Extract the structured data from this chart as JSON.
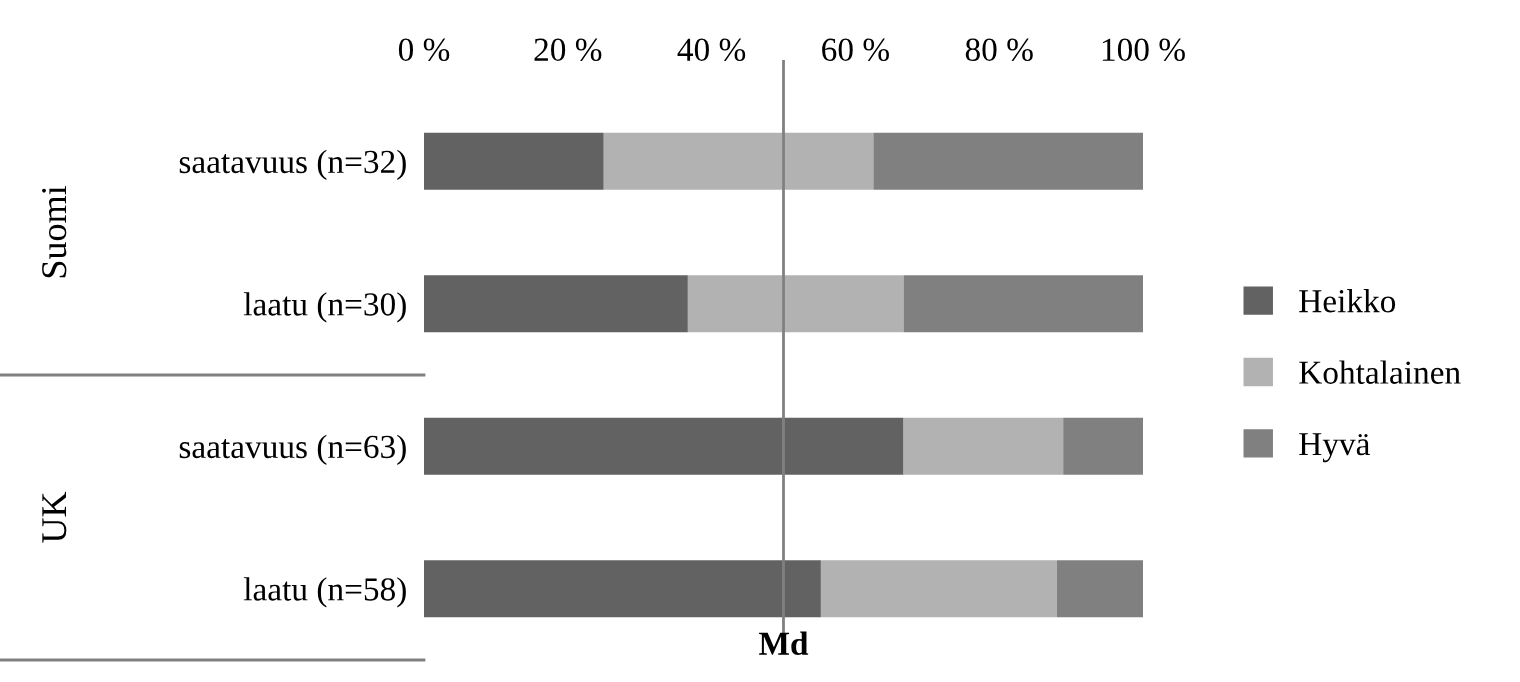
{
  "chart_data": {
    "type": "bar",
    "orientation": "horizontal",
    "stacked": true,
    "categories": [
      "saatavuus (n=32)",
      "laatu (n=30)",
      "saatavuus (n=63)",
      "laatu (n=58)"
    ],
    "series": [
      {
        "name": "Heikko",
        "color": "#626262",
        "values": [
          25,
          36.7,
          66.7,
          55.2
        ]
      },
      {
        "name": "Kohtalainen",
        "color": "#b2b2b2",
        "values": [
          37.5,
          30,
          22.2,
          32.8
        ]
      },
      {
        "name": "Hyvä",
        "color": "#808080",
        "values": [
          37.5,
          33.3,
          11.1,
          12.0
        ]
      }
    ],
    "xlim": [
      0,
      100
    ],
    "xticks": [
      {
        "value": 0,
        "label": "0 %"
      },
      {
        "value": 20,
        "label": "20 %"
      },
      {
        "value": 40,
        "label": "40 %"
      },
      {
        "value": 60,
        "label": "60 %"
      },
      {
        "value": 80,
        "label": "80 %"
      },
      {
        "value": 100,
        "label": "100 %"
      }
    ],
    "ref_lines": [
      {
        "axis": "x",
        "value": 50,
        "label": "Md",
        "color": "#808080"
      }
    ],
    "annotations": [
      "Suomi",
      "UK"
    ],
    "legend": "right",
    "grid": false
  }
}
